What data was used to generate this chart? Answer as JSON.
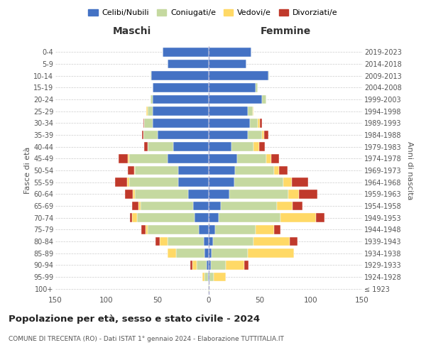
{
  "age_groups": [
    "100+",
    "95-99",
    "90-94",
    "85-89",
    "80-84",
    "75-79",
    "70-74",
    "65-69",
    "60-64",
    "55-59",
    "50-54",
    "45-49",
    "40-44",
    "35-39",
    "30-34",
    "25-29",
    "20-24",
    "15-19",
    "10-14",
    "5-9",
    "0-4"
  ],
  "birth_years": [
    "≤ 1923",
    "1924-1928",
    "1929-1933",
    "1934-1938",
    "1939-1943",
    "1944-1948",
    "1949-1953",
    "1954-1958",
    "1959-1963",
    "1964-1968",
    "1969-1973",
    "1974-1978",
    "1979-1983",
    "1984-1988",
    "1989-1993",
    "1994-1998",
    "1999-2003",
    "2004-2008",
    "2009-2013",
    "2014-2018",
    "2019-2023"
  ],
  "male": {
    "celibi": [
      0,
      1,
      2,
      4,
      5,
      10,
      14,
      15,
      20,
      30,
      30,
      40,
      35,
      50,
      55,
      55,
      55,
      55,
      56,
      40,
      45
    ],
    "coniugati": [
      1,
      3,
      10,
      28,
      35,
      50,
      56,
      52,
      52,
      48,
      42,
      38,
      25,
      14,
      8,
      5,
      2,
      0,
      1,
      0,
      0
    ],
    "vedovi": [
      0,
      2,
      4,
      8,
      8,
      2,
      5,
      2,
      2,
      2,
      1,
      1,
      0,
      0,
      0,
      1,
      0,
      0,
      0,
      0,
      0
    ],
    "divorziati": [
      0,
      0,
      2,
      0,
      4,
      4,
      2,
      6,
      8,
      12,
      6,
      9,
      3,
      1,
      1,
      0,
      0,
      0,
      0,
      0,
      0
    ]
  },
  "female": {
    "nubili": [
      0,
      1,
      2,
      3,
      4,
      6,
      10,
      12,
      20,
      25,
      26,
      28,
      22,
      38,
      40,
      38,
      52,
      46,
      58,
      37,
      42
    ],
    "coniugate": [
      1,
      4,
      15,
      35,
      40,
      40,
      60,
      55,
      58,
      48,
      38,
      28,
      22,
      14,
      8,
      5,
      4,
      2,
      1,
      0,
      0
    ],
    "vedove": [
      0,
      12,
      18,
      45,
      35,
      18,
      35,
      15,
      10,
      8,
      5,
      5,
      5,
      2,
      2,
      1,
      0,
      0,
      0,
      0,
      0
    ],
    "divorziate": [
      0,
      0,
      4,
      0,
      8,
      6,
      8,
      10,
      18,
      16,
      8,
      8,
      6,
      4,
      2,
      0,
      0,
      0,
      0,
      0,
      0
    ]
  },
  "colors": {
    "celibi": "#4472c4",
    "coniugati": "#c5d9a0",
    "vedovi": "#ffd966",
    "divorziati": "#c0392b"
  },
  "title": "Popolazione per età, sesso e stato civile - 2024",
  "subtitle": "COMUNE DI TRECENTA (RO) - Dati ISTAT 1° gennaio 2024 - Elaborazione TUTTITALIA.IT",
  "xlabel_left": "Maschi",
  "xlabel_right": "Femmine",
  "ylabel_left": "Fasce di età",
  "ylabel_right": "Anni di nascita",
  "xlim": 150,
  "legend_labels": [
    "Celibi/Nubili",
    "Coniugati/e",
    "Vedovi/e",
    "Divorziati/e"
  ],
  "background_color": "#ffffff"
}
